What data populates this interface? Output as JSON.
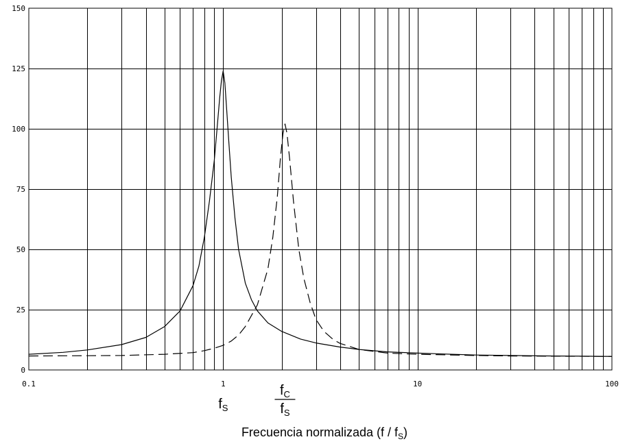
{
  "chart_data": {
    "type": "line",
    "title": "",
    "xlabel": "Frecuencia normalizada (f / fS)",
    "xlabel_parts": {
      "main": "Frecuencia normalizada (f / f",
      "sub": "S",
      "close": ")"
    },
    "ylabel": "",
    "x_scale": "log",
    "xlim": [
      0.1,
      100
    ],
    "ylim": [
      0,
      150
    ],
    "x_ticks": [
      {
        "value": 0.1,
        "label": "0.1"
      },
      {
        "value": 1,
        "label": "1"
      },
      {
        "value": 10,
        "label": "10"
      },
      {
        "value": 100,
        "label": "100"
      }
    ],
    "y_ticks": [
      {
        "value": 0,
        "label": "0"
      },
      {
        "value": 25,
        "label": "25"
      },
      {
        "value": 50,
        "label": "50"
      },
      {
        "value": 75,
        "label": "75"
      },
      {
        "value": 100,
        "label": "100"
      },
      {
        "value": 125,
        "label": "125"
      },
      {
        "value": 150,
        "label": "150"
      }
    ],
    "grid": true,
    "legend": "none",
    "annotations": [
      {
        "id": "fs",
        "x": 1,
        "label": "f",
        "sub": "S"
      },
      {
        "id": "fc-over-fs",
        "x": 2.08,
        "num": "f",
        "num_sub": "C",
        "den": "f",
        "den_sub": "S"
      }
    ],
    "series": [
      {
        "style": "solid",
        "x": [
          0.1,
          0.15,
          0.2,
          0.3,
          0.4,
          0.5,
          0.6,
          0.7,
          0.75,
          0.8,
          0.85,
          0.9,
          0.93,
          0.96,
          0.98,
          1.0,
          1.02,
          1.04,
          1.07,
          1.1,
          1.15,
          1.2,
          1.3,
          1.4,
          1.5,
          1.7,
          2.0,
          2.5,
          3.0,
          4.0,
          5.0,
          7.0,
          10,
          15,
          20,
          30,
          50,
          70,
          100
        ],
        "y": [
          6.5,
          7.3,
          8.3,
          10.5,
          13.5,
          18,
          24.5,
          35,
          43,
          55,
          70,
          87,
          100,
          113,
          120,
          124,
          119,
          109,
          94,
          80,
          63,
          50,
          36,
          29,
          24.5,
          19.5,
          16,
          12.8,
          11.2,
          9.5,
          8.5,
          7.5,
          7,
          6.5,
          6.2,
          6,
          5.8,
          5.7,
          5.6
        ]
      },
      {
        "style": "dashed",
        "x": [
          0.1,
          0.2,
          0.3,
          0.5,
          0.7,
          0.8,
          0.9,
          1.0,
          1.1,
          1.2,
          1.3,
          1.5,
          1.7,
          1.8,
          1.9,
          1.97,
          2.03,
          2.08,
          2.13,
          2.2,
          2.3,
          2.45,
          2.6,
          2.8,
          3.0,
          3.3,
          3.7,
          4.0,
          5.0,
          7.0,
          10,
          20,
          30,
          50,
          100
        ],
        "y": [
          5.8,
          5.9,
          6.0,
          6.5,
          7.2,
          8.0,
          9.0,
          10.2,
          12,
          14.5,
          18,
          27,
          42,
          55,
          72,
          88,
          98,
          102,
          98,
          87,
          70,
          50,
          38,
          28,
          21,
          16,
          12.5,
          11,
          8.5,
          7,
          6.5,
          6,
          5.8,
          5.7,
          5.6
        ]
      }
    ]
  }
}
